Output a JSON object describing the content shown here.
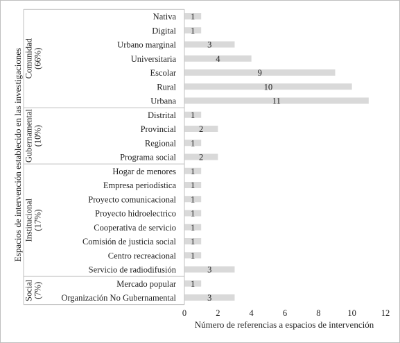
{
  "chart_data": {
    "type": "bar",
    "orientation": "horizontal",
    "xlabel": "Número de referencias a espacios de intervención",
    "ylabel": "Espacios de intervención establecido en las investigaciones",
    "xlim": [
      0,
      12
    ],
    "xticks": [
      0,
      2,
      4,
      6,
      8,
      10,
      12
    ],
    "grid": false,
    "legend": "none",
    "bar_color": "#d9d9d9",
    "groups": [
      {
        "name_lines": [
          "Comunidad",
          "(66%)"
        ],
        "categories": [
          "Nativa",
          "Digital",
          "Urbano marginal",
          "Universitaria",
          "Escolar",
          "Rural",
          "Urbana"
        ],
        "values": [
          1,
          1,
          3,
          4,
          9,
          10,
          11
        ]
      },
      {
        "name_lines": [
          "Gubernamental",
          "(10%)"
        ],
        "categories": [
          "Distrital",
          "Provincial",
          "Regional",
          "Programa social"
        ],
        "values": [
          1,
          2,
          1,
          2
        ]
      },
      {
        "name_lines": [
          "Institucional",
          "(17%)"
        ],
        "categories": [
          "Hogar de menores",
          "Empresa periodística",
          "Proyecto comunicacional",
          "Proyecto hidroelectrico",
          "Cooperativa de servicio",
          "Comisión de justicia social",
          "Centro recreacional",
          "Servicio de radiodifusión"
        ],
        "values": [
          1,
          1,
          1,
          1,
          1,
          1,
          1,
          3
        ]
      },
      {
        "name_lines": [
          "Social",
          "(7%)"
        ],
        "categories": [
          "Mercado popular",
          "Organización No Gubernamental"
        ],
        "values": [
          1,
          3
        ]
      }
    ]
  }
}
